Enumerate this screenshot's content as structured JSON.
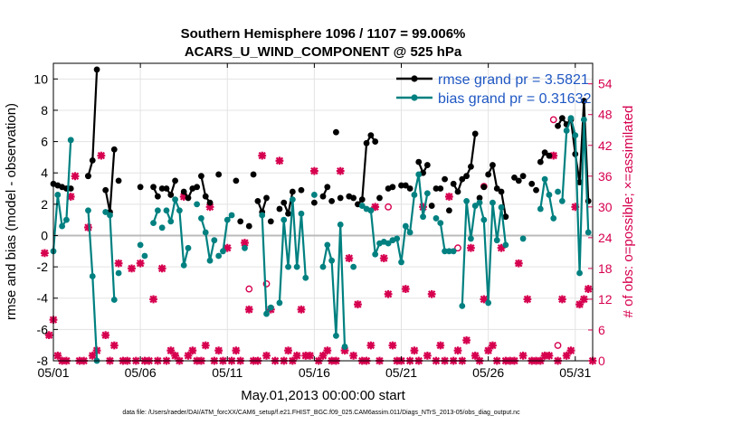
{
  "chart_data": {
    "type": "line",
    "title": "Southern Hemisphere 1096 / 1107 = 99.006%",
    "subtitle": "ACARS_U_WIND_COMPONENT @ 525 hPa",
    "xlabel": "May.01,2013 00:00:00 start",
    "ylabel": "rmse and bias (model - observation)",
    "y2label": "# of obs: o=possible; ×=assimilated",
    "footer": "data file: /Users/raeder/DAI/ATM_forcXX/CAM6_setup/f.e21.FHIST_BGC.f09_025.CAM6assim.011/Diags_NTrS_2013-05/obs_diag_output.nc",
    "xlim": [
      1,
      32
    ],
    "ylim": [
      -8,
      11
    ],
    "y2lim": [
      0,
      58
    ],
    "xticks": [
      1,
      6,
      11,
      16,
      21,
      26,
      31
    ],
    "xtick_labels": [
      "05/01",
      "05/06",
      "05/11",
      "05/16",
      "05/21",
      "05/26",
      "05/31"
    ],
    "yticks": [
      -8,
      -6,
      -4,
      -2,
      0,
      2,
      4,
      6,
      8,
      10
    ],
    "ytick_labels": [
      "-8",
      "-6",
      "-4",
      "-2",
      "0",
      "2",
      "4",
      "6",
      "8",
      "10"
    ],
    "y2ticks": [
      0,
      6,
      12,
      18,
      24,
      30,
      36,
      42,
      48,
      54
    ],
    "y2tick_labels": [
      "0",
      "6",
      "12",
      "18",
      "24",
      "30",
      "36",
      "42",
      "48",
      "54"
    ],
    "legend_position": "top-right",
    "colors": {
      "rmse": "#000000",
      "bias": "#008080",
      "obs": "#d6004f",
      "legend_text": "#1f57c3",
      "zero": "#bbbbbb"
    },
    "rmse": {
      "name": "rmse grand pr = 3.5821",
      "segments": [
        [
          [
            1.0,
            3.3
          ],
          [
            1.25,
            3.2
          ],
          [
            1.5,
            3.1
          ],
          [
            1.75,
            3.0
          ]
        ],
        [
          [
            3.0,
            3.8
          ],
          [
            3.25,
            4.8
          ],
          [
            3.5,
            10.6
          ]
        ],
        [
          [
            4.0,
            2.9
          ],
          [
            4.25,
            1.5
          ],
          [
            4.5,
            5.5
          ]
        ],
        [
          [
            6.75,
            3.1
          ],
          [
            7.0,
            2.5
          ]
        ],
        [
          [
            7.5,
            3.0
          ],
          [
            7.75,
            2.6
          ],
          [
            8.0,
            3.5
          ]
        ],
        [
          [
            8.5,
            2.8
          ],
          [
            8.75,
            2.4
          ],
          [
            9.0,
            3.0
          ]
        ],
        [
          [
            9.5,
            3.8
          ],
          [
            9.75,
            2.5
          ],
          [
            10.0,
            2.1
          ]
        ],
        [
          [
            12.75,
            2.2
          ],
          [
            13.0,
            1.5
          ],
          [
            13.25,
            2.4
          ]
        ],
        [
          [
            14.25,
            2.1
          ],
          [
            14.5,
            1.4
          ],
          [
            14.75,
            2.8
          ]
        ],
        [
          [
            16.5,
            2.5
          ],
          [
            16.75,
            3.1
          ]
        ],
        [
          [
            18.5,
            2.0
          ],
          [
            18.75,
            2.3
          ],
          [
            19.0,
            5.9
          ],
          [
            19.25,
            6.4
          ],
          [
            19.5,
            6.0
          ]
        ],
        [
          [
            22.0,
            4.7
          ],
          [
            22.25,
            4.0
          ],
          [
            22.5,
            4.5
          ]
        ],
        [
          [
            24.0,
            3.3
          ],
          [
            24.25,
            2.8
          ],
          [
            24.5,
            3.6
          ],
          [
            24.75,
            3.8
          ],
          [
            25.0,
            4.4
          ],
          [
            25.25,
            6.5
          ]
        ],
        [
          [
            26.0,
            3.9
          ],
          [
            26.25,
            4.5
          ],
          [
            26.5,
            3.0
          ],
          [
            26.75,
            2.8
          ],
          [
            27.0,
            1.2
          ]
        ],
        [
          [
            29.0,
            4.7
          ],
          [
            29.25,
            5.3
          ]
        ],
        [
          [
            30.0,
            7.0
          ],
          [
            30.25,
            7.5
          ],
          [
            30.5,
            7.1
          ],
          [
            30.75,
            7.4
          ],
          [
            31.0,
            5.2
          ],
          [
            31.25,
            3.4
          ],
          [
            31.5,
            8.6
          ],
          [
            31.75,
            2.2
          ]
        ]
      ],
      "markers": [
        [
          2.0,
          3.0
        ],
        [
          3.0,
          3.8
        ],
        [
          4.75,
          3.5
        ],
        [
          6.0,
          3.1
        ],
        [
          7.25,
          3.0
        ],
        [
          9.25,
          3.1
        ],
        [
          10.5,
          3.9
        ],
        [
          11.5,
          3.5
        ],
        [
          11.75,
          0.9
        ],
        [
          12.25,
          0.6
        ],
        [
          12.5,
          3.9
        ],
        [
          13.5,
          0.9
        ],
        [
          14.0,
          1.7
        ],
        [
          15.25,
          2.9
        ],
        [
          16.0,
          2.1
        ],
        [
          17.0,
          2.2
        ],
        [
          17.25,
          6.6
        ],
        [
          17.5,
          2.4
        ],
        [
          18.0,
          2.5
        ],
        [
          18.25,
          2.4
        ],
        [
          19.75,
          2.4
        ],
        [
          20.25,
          3.0
        ],
        [
          20.5,
          3.1
        ],
        [
          21.0,
          3.2
        ],
        [
          21.25,
          3.2
        ],
        [
          21.5,
          3.0
        ],
        [
          22.75,
          1.9
        ],
        [
          23.0,
          3.0
        ],
        [
          23.25,
          3.0
        ],
        [
          23.5,
          3.6
        ],
        [
          23.75,
          1.6
        ],
        [
          25.5,
          2.4
        ],
        [
          25.75,
          3.1
        ],
        [
          27.5,
          3.7
        ],
        [
          27.75,
          3.5
        ],
        [
          28.0,
          3.8
        ],
        [
          28.5,
          3.3
        ],
        [
          28.75,
          2.9
        ],
        [
          29.5,
          5.1
        ]
      ]
    },
    "bias": {
      "name": "bias grand pr = 0.31632",
      "segments": [
        [
          [
            1.0,
            -1.0
          ],
          [
            1.25,
            2.6
          ],
          [
            1.5,
            0.6
          ],
          [
            1.75,
            1.0
          ],
          [
            2.0,
            6.1
          ]
        ],
        [
          [
            3.0,
            1.6
          ],
          [
            3.25,
            -2.6
          ],
          [
            3.5,
            -8.0
          ]
        ],
        [
          [
            4.0,
            1.5
          ],
          [
            4.25,
            1.3
          ],
          [
            4.5,
            -4.1
          ]
        ],
        [
          [
            6.75,
            0.8
          ],
          [
            7.0,
            1.6
          ]
        ],
        [
          [
            7.5,
            1.6
          ],
          [
            7.75,
            0.9
          ],
          [
            8.0,
            2.3
          ],
          [
            8.25,
            1.6
          ],
          [
            8.5,
            -1.9
          ],
          [
            8.75,
            -0.8
          ]
        ],
        [
          [
            9.5,
            1.1
          ],
          [
            9.75,
            0.2
          ],
          [
            10.0,
            -1.6
          ],
          [
            10.25,
            -0.3
          ]
        ],
        [
          [
            10.75,
            -1.0
          ],
          [
            11.0,
            1.0
          ],
          [
            11.25,
            1.3
          ]
        ],
        [
          [
            13.0,
            1.3
          ],
          [
            13.25,
            -5.0
          ],
          [
            13.5,
            -4.6
          ]
        ],
        [
          [
            14.0,
            -4.3
          ],
          [
            14.25,
            1.0
          ],
          [
            14.5,
            -2.0
          ],
          [
            14.75,
            2.3
          ],
          [
            15.0,
            -2.0
          ],
          [
            15.25,
            1.4
          ],
          [
            15.5,
            -2.7
          ]
        ],
        [
          [
            16.5,
            -2.0
          ],
          [
            16.75,
            -0.6
          ],
          [
            17.0,
            -1.6
          ],
          [
            17.25,
            -6.4
          ],
          [
            17.5,
            0.7
          ],
          [
            17.75,
            -7.1
          ]
        ],
        [
          [
            18.75,
            1.9
          ],
          [
            19.0,
            1.7
          ],
          [
            19.25,
            1.6
          ],
          [
            19.5,
            -1.2
          ],
          [
            19.75,
            -0.5
          ],
          [
            20.0,
            -0.4
          ],
          [
            20.25,
            -0.5
          ],
          [
            20.5,
            -0.3
          ]
        ],
        [
          [
            20.75,
            -0.2
          ],
          [
            21.0,
            -1.7
          ],
          [
            21.25,
            0.6
          ],
          [
            21.5,
            0.2
          ],
          [
            21.75,
            2.6
          ],
          [
            22.0,
            3.9
          ],
          [
            22.25,
            1.2
          ],
          [
            22.5,
            2.7
          ]
        ],
        [
          [
            23.25,
            0.8
          ],
          [
            23.5,
            -1.0
          ],
          [
            23.75,
            -1.0
          ],
          [
            24.0,
            -1.0
          ]
        ],
        [
          [
            24.5,
            -4.5
          ],
          [
            24.75,
            2.2
          ],
          [
            25.0,
            -0.2
          ],
          [
            25.25,
            1.9
          ],
          [
            25.5,
            2.1
          ],
          [
            25.75,
            1.0
          ],
          [
            26.0,
            -4.3
          ],
          [
            26.25,
            2.1
          ],
          [
            26.5,
            -0.3
          ],
          [
            26.75,
            1.8
          ],
          [
            27.0,
            -0.6
          ]
        ],
        [
          [
            29.0,
            1.7
          ],
          [
            29.25,
            3.6
          ],
          [
            29.5,
            2.6
          ],
          [
            29.75,
            1.1
          ]
        ],
        [
          [
            30.25,
            2.2
          ],
          [
            30.5,
            6.7
          ],
          [
            30.75,
            7.5
          ],
          [
            31.0,
            6.4
          ],
          [
            31.25,
            -2.4
          ],
          [
            31.5,
            7.4
          ],
          [
            31.75,
            0.2
          ]
        ]
      ],
      "markers": [
        [
          2.0,
          6.1
        ],
        [
          4.75,
          -2.4
        ],
        [
          6.0,
          -0.6
        ],
        [
          6.25,
          -1.3
        ],
        [
          7.25,
          0.5
        ],
        [
          9.25,
          2.0
        ],
        [
          10.5,
          -1.3
        ],
        [
          12.0,
          -0.8
        ],
        [
          16.0,
          2.6
        ],
        [
          18.25,
          -2.0
        ],
        [
          19.25,
          1.6
        ],
        [
          23.0,
          1.1
        ],
        [
          28.0,
          -0.2
        ],
        [
          30.0,
          2.8
        ]
      ]
    },
    "obs_assimilated": [
      [
        0.5,
        21
      ],
      [
        0.75,
        5
      ],
      [
        1.0,
        8
      ],
      [
        1.25,
        1
      ],
      [
        1.5,
        0
      ],
      [
        1.75,
        0
      ],
      [
        2.0,
        32
      ],
      [
        2.25,
        36
      ],
      [
        2.5,
        0
      ],
      [
        2.75,
        0
      ],
      [
        3.0,
        26
      ],
      [
        3.25,
        1
      ],
      [
        3.5,
        2
      ],
      [
        3.75,
        40
      ],
      [
        4.0,
        5
      ],
      [
        4.25,
        0
      ],
      [
        4.5,
        3
      ],
      [
        4.75,
        19
      ],
      [
        5.0,
        0
      ],
      [
        5.25,
        0
      ],
      [
        5.5,
        18
      ],
      [
        5.75,
        0
      ],
      [
        6.0,
        19
      ],
      [
        6.25,
        0
      ],
      [
        6.5,
        0
      ],
      [
        6.75,
        12
      ],
      [
        7.0,
        0
      ],
      [
        7.25,
        18
      ],
      [
        7.5,
        0
      ],
      [
        7.75,
        2
      ],
      [
        8.0,
        1
      ],
      [
        8.25,
        0
      ],
      [
        8.5,
        32
      ],
      [
        8.75,
        1
      ],
      [
        9.0,
        2
      ],
      [
        9.25,
        0
      ],
      [
        9.5,
        0
      ],
      [
        9.75,
        3
      ],
      [
        10.0,
        30
      ],
      [
        10.25,
        0
      ],
      [
        10.5,
        2
      ],
      [
        10.75,
        0
      ],
      [
        11.0,
        22
      ],
      [
        11.25,
        0
      ],
      [
        11.5,
        2
      ],
      [
        11.75,
        0
      ],
      [
        12.0,
        23
      ],
      [
        12.25,
        10
      ],
      [
        12.5,
        0
      ],
      [
        12.75,
        0
      ],
      [
        13.0,
        40
      ],
      [
        13.25,
        1
      ],
      [
        13.5,
        10
      ],
      [
        13.75,
        0
      ],
      [
        14.0,
        39
      ],
      [
        14.25,
        0
      ],
      [
        14.5,
        2
      ],
      [
        14.75,
        0
      ],
      [
        15.0,
        1
      ],
      [
        15.25,
        10
      ],
      [
        15.5,
        1
      ],
      [
        15.75,
        1
      ],
      [
        16.0,
        37
      ],
      [
        16.25,
        0
      ],
      [
        16.5,
        1
      ],
      [
        16.75,
        2
      ],
      [
        17.0,
        0
      ],
      [
        17.25,
        0
      ],
      [
        17.5,
        37
      ],
      [
        17.75,
        2
      ],
      [
        18.0,
        20
      ],
      [
        18.25,
        1
      ],
      [
        18.5,
        11
      ],
      [
        18.75,
        0
      ],
      [
        19.0,
        0
      ],
      [
        19.25,
        3
      ],
      [
        19.5,
        30
      ],
      [
        19.75,
        0
      ],
      [
        20.0,
        20
      ],
      [
        20.25,
        13
      ],
      [
        20.5,
        3
      ],
      [
        20.75,
        0
      ],
      [
        21.0,
        0
      ],
      [
        21.25,
        14
      ],
      [
        21.5,
        0
      ],
      [
        21.75,
        2
      ],
      [
        22.0,
        0
      ],
      [
        22.25,
        30
      ],
      [
        22.5,
        1
      ],
      [
        22.75,
        13
      ],
      [
        23.0,
        0
      ],
      [
        23.25,
        3
      ],
      [
        23.5,
        0
      ],
      [
        23.75,
        32
      ],
      [
        24.0,
        0
      ],
      [
        24.25,
        2
      ],
      [
        24.5,
        0
      ],
      [
        24.75,
        4
      ],
      [
        25.0,
        22
      ],
      [
        25.25,
        1
      ],
      [
        25.5,
        0
      ],
      [
        25.75,
        12
      ],
      [
        26.0,
        2
      ],
      [
        26.25,
        3
      ],
      [
        26.5,
        0
      ],
      [
        26.75,
        22
      ],
      [
        27.0,
        0
      ],
      [
        27.25,
        0
      ],
      [
        27.5,
        0
      ],
      [
        27.75,
        19
      ],
      [
        28.0,
        1
      ],
      [
        28.25,
        12
      ],
      [
        28.5,
        0
      ],
      [
        28.75,
        0
      ],
      [
        29.0,
        0
      ],
      [
        29.25,
        1
      ],
      [
        29.5,
        1
      ],
      [
        29.75,
        40
      ],
      [
        30.0,
        0
      ],
      [
        30.25,
        12
      ],
      [
        30.5,
        1
      ],
      [
        30.75,
        2
      ],
      [
        31.0,
        30
      ],
      [
        31.25,
        11
      ],
      [
        31.5,
        12
      ],
      [
        31.75,
        14
      ],
      [
        32.0,
        0
      ]
    ],
    "obs_possible": [
      [
        12.25,
        14
      ],
      [
        13.25,
        15
      ],
      [
        20.25,
        30
      ],
      [
        24.25,
        22
      ],
      [
        25.75,
        34
      ],
      [
        29.75,
        47
      ],
      [
        30.0,
        3
      ]
    ]
  }
}
